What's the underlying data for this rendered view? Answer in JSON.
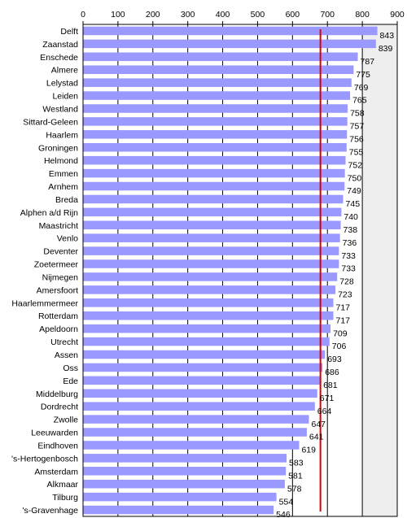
{
  "chart_data": {
    "type": "bar",
    "orientation": "horizontal",
    "categories": [
      "Delft",
      "Zaanstad",
      "Enschede",
      "Almere",
      "Lelystad",
      "Leiden",
      "Westland",
      "Sittard-Geleen",
      "Haarlem",
      "Groningen",
      "Helmond",
      "Emmen",
      "Arnhem",
      "Breda",
      "Alphen a/d Rijn",
      "Maastricht",
      "Venlo",
      "Deventer",
      "Zoetermeer",
      "Nijmegen",
      "Amersfoort",
      "Haarlemmermeer",
      "Rotterdam",
      "Apeldoorn",
      "Utrecht",
      "Assen",
      "Oss",
      "Ede",
      "Middelburg",
      "Dordrecht",
      "Zwolle",
      "Leeuwarden",
      "Eindhoven",
      "'s-Hertogenbosch",
      "Amsterdam",
      "Alkmaar",
      "Tilburg",
      "'s-Gravenhage"
    ],
    "values": [
      843,
      839,
      787,
      775,
      769,
      765,
      758,
      757,
      756,
      755,
      752,
      750,
      749,
      745,
      740,
      738,
      736,
      733,
      733,
      728,
      723,
      717,
      717,
      709,
      706,
      693,
      686,
      681,
      671,
      664,
      647,
      641,
      619,
      583,
      581,
      578,
      554,
      546
    ],
    "value_labels": [
      "843",
      "839",
      "787",
      "775",
      "769",
      "765",
      "758",
      "757",
      "756",
      "755",
      "752",
      "750",
      "749",
      "745",
      "740",
      "738",
      "736",
      "733",
      "733",
      "728",
      "723",
      "717",
      "717",
      "709",
      "706",
      "693",
      "686",
      "681",
      "671",
      "664",
      "647",
      "641",
      "619",
      "583",
      "581",
      "578",
      "554",
      "546"
    ],
    "xlim": [
      0,
      900
    ],
    "x_ticks": [
      0,
      100,
      200,
      300,
      400,
      500,
      600,
      700,
      800,
      900
    ],
    "x_tick_labels": [
      "0",
      "100",
      "200",
      "300",
      "400",
      "500",
      "600",
      "700",
      "800",
      "900"
    ],
    "axis_position": "top",
    "reference_line": {
      "value": 680,
      "color": "#dd0000"
    },
    "shaded_region": {
      "from": 800,
      "to": 900,
      "color": "#eeeeee"
    },
    "bar_color": "#9999ff",
    "grid": true,
    "title": "",
    "xlabel": "",
    "ylabel": ""
  }
}
